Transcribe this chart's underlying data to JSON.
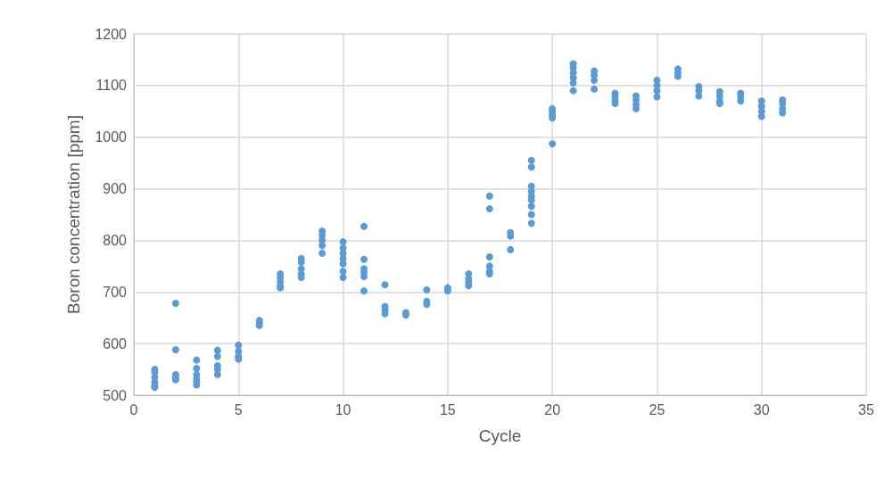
{
  "chart_data": {
    "type": "scatter",
    "xlabel": "Cycle",
    "ylabel": "Boron concentration [ppm]",
    "xlim": [
      0,
      35
    ],
    "xticks": [
      0,
      5,
      10,
      15,
      20,
      25,
      30,
      35
    ],
    "ylim": [
      500,
      1200
    ],
    "yticks": [
      500,
      600,
      700,
      800,
      900,
      1000,
      1100,
      1200
    ],
    "grid": true,
    "marker": "circle",
    "series": [
      {
        "color": "#5b9bd5",
        "x": [
          1,
          1,
          1,
          1,
          1,
          1,
          2,
          2,
          2,
          2,
          2,
          3,
          3,
          3,
          3,
          3,
          3,
          4,
          4,
          4,
          4,
          4,
          5,
          5,
          5,
          5,
          6,
          6,
          6,
          7,
          7,
          7,
          7,
          7,
          8,
          8,
          8,
          8,
          8,
          9,
          9,
          9,
          9,
          9,
          10,
          10,
          10,
          10,
          10,
          10,
          10,
          11,
          11,
          11,
          11,
          11,
          11,
          12,
          12,
          12,
          12,
          13,
          13,
          14,
          14,
          14,
          15,
          15,
          16,
          16,
          16,
          16,
          17,
          17,
          17,
          17,
          17,
          17,
          18,
          18,
          18,
          19,
          19,
          19,
          19,
          19,
          19,
          19,
          19,
          19,
          20,
          20,
          20,
          20,
          20,
          21,
          21,
          21,
          21,
          21,
          21,
          22,
          22,
          22,
          22,
          23,
          23,
          23,
          23,
          24,
          24,
          24,
          24,
          25,
          25,
          25,
          25,
          26,
          26,
          26,
          27,
          27,
          27,
          28,
          28,
          28,
          28,
          29,
          29,
          29,
          30,
          30,
          30,
          30,
          31,
          31,
          31,
          31
        ],
        "values": [
          550,
          545,
          535,
          525,
          518,
          515,
          678,
          588,
          540,
          535,
          530,
          568,
          552,
          540,
          532,
          525,
          520,
          587,
          575,
          557,
          550,
          540,
          597,
          585,
          575,
          570,
          645,
          640,
          635,
          735,
          728,
          720,
          712,
          708,
          765,
          758,
          745,
          735,
          728,
          818,
          810,
          800,
          790,
          775,
          797,
          785,
          775,
          765,
          755,
          740,
          728,
          827,
          763,
          745,
          738,
          730,
          702,
          714,
          672,
          665,
          658,
          660,
          655,
          704,
          682,
          676,
          708,
          702,
          735,
          725,
          718,
          712,
          886,
          861,
          768,
          750,
          740,
          735,
          815,
          808,
          782,
          955,
          942,
          905,
          895,
          885,
          878,
          866,
          850,
          833,
          1055,
          1050,
          1043,
          1037,
          987,
          1142,
          1135,
          1125,
          1115,
          1105,
          1090,
          1128,
          1120,
          1110,
          1093,
          1085,
          1078,
          1070,
          1065,
          1080,
          1072,
          1063,
          1055,
          1110,
          1100,
          1090,
          1078,
          1132,
          1125,
          1118,
          1098,
          1090,
          1080,
          1088,
          1080,
          1070,
          1065,
          1085,
          1078,
          1070,
          1070,
          1060,
          1050,
          1040,
          1072,
          1065,
          1055,
          1047
        ]
      }
    ]
  }
}
